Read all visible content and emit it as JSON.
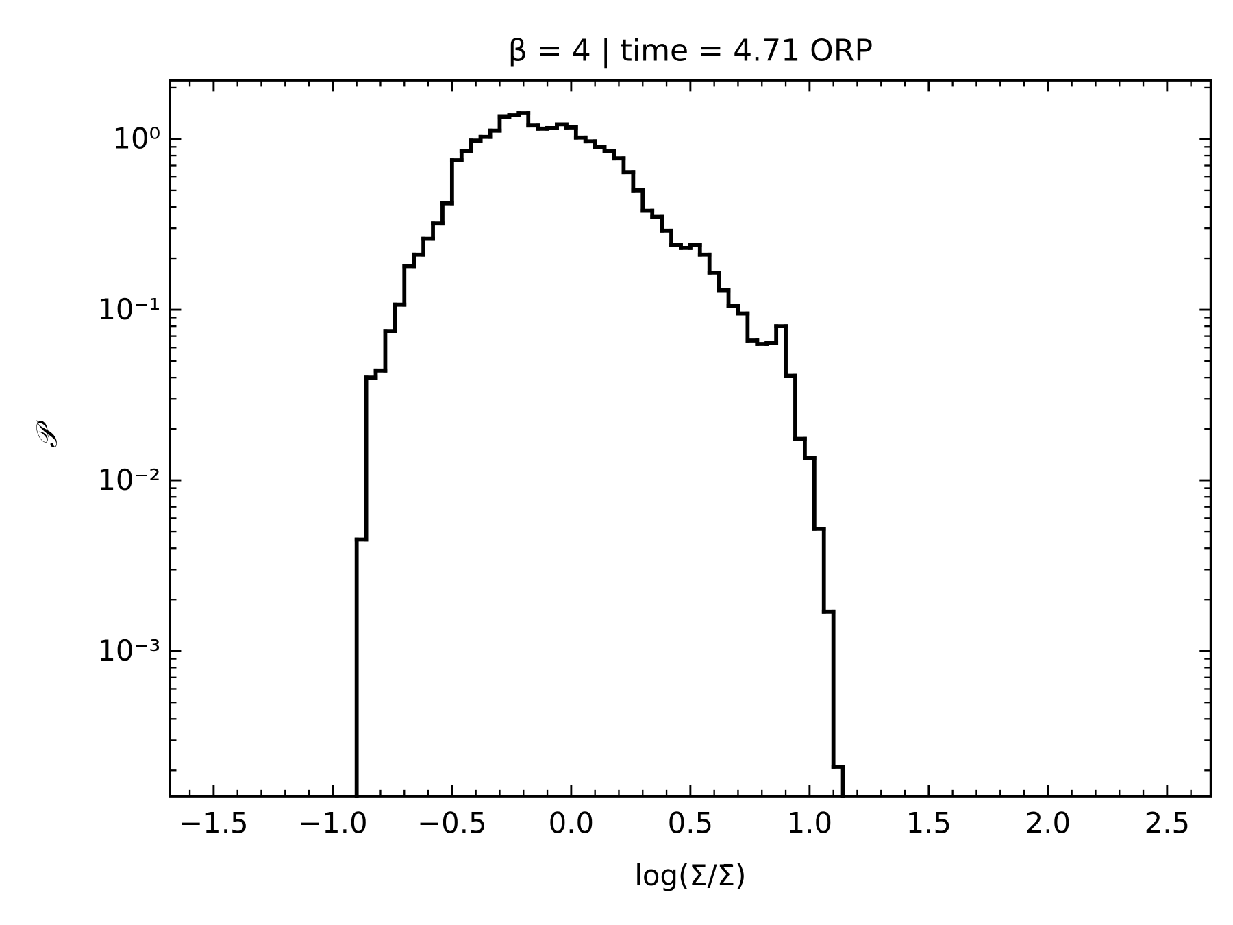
{
  "chart_data": {
    "type": "histogram-step",
    "title": "β = 4 | time = 4.71 ORP",
    "xlabel": "log(Σ/Σ̄)",
    "ylabel": "𝒫",
    "color": "#000000",
    "ylog": true,
    "bins": [
      -0.9,
      -0.86,
      -0.82,
      -0.78,
      -0.74,
      -0.7,
      -0.66,
      -0.62,
      -0.58,
      -0.54,
      -0.5,
      -0.46,
      -0.42,
      -0.38,
      -0.34,
      -0.3,
      -0.26,
      -0.22,
      -0.18,
      -0.14,
      -0.1,
      -0.06,
      -0.02,
      0.02,
      0.06,
      0.1,
      0.14,
      0.18,
      0.22,
      0.26,
      0.3,
      0.34,
      0.38,
      0.42,
      0.46,
      0.5,
      0.54,
      0.58,
      0.62,
      0.66,
      0.7,
      0.74,
      0.78,
      0.82,
      0.86,
      0.9,
      0.94,
      0.98,
      1.02,
      1.06,
      1.1,
      1.14
    ],
    "values": [
      0.0045,
      0.04,
      0.044,
      0.075,
      0.107,
      0.18,
      0.21,
      0.26,
      0.32,
      0.42,
      0.75,
      0.85,
      0.98,
      1.03,
      1.12,
      1.35,
      1.38,
      1.42,
      1.2,
      1.15,
      1.16,
      1.22,
      1.17,
      1.02,
      0.97,
      0.9,
      0.85,
      0.77,
      0.64,
      0.5,
      0.38,
      0.35,
      0.29,
      0.24,
      0.23,
      0.24,
      0.21,
      0.165,
      0.13,
      0.105,
      0.095,
      0.066,
      0.063,
      0.064,
      0.08,
      0.041,
      0.0175,
      0.0135,
      0.0052,
      0.0017,
      0.00021
    ],
    "xlim": [
      -1.683,
      2.683
    ],
    "ylim": [
      0.000141,
      2.21
    ],
    "xticks": [
      {
        "value": -1.5,
        "label": "−1.5"
      },
      {
        "value": -1,
        "label": "−1.0"
      },
      {
        "value": -0.5,
        "label": "−0.5"
      },
      {
        "value": 0,
        "label": "0.0"
      },
      0.5,
      {
        "value": 1,
        "label": "1.0"
      },
      1.5,
      {
        "value": 2,
        "label": "2.0"
      },
      2.5
    ],
    "xminorticks": [
      -1.6,
      -1.4,
      -1.3,
      -1.2,
      -1.1,
      -0.9,
      -0.8,
      -0.7,
      -0.6,
      -0.4,
      -0.3,
      -0.2,
      -0.1,
      0.1,
      0.2,
      0.3,
      0.4,
      0.6,
      0.7,
      0.8,
      0.9,
      1.1,
      1.2,
      1.3,
      1.4,
      1.6,
      1.7,
      1.8,
      1.9,
      2.1,
      2.2,
      2.3,
      2.4,
      2.6
    ],
    "yticks": [
      {
        "value": 0.001,
        "label": "10⁻³"
      },
      {
        "value": 0.01,
        "label": "10⁻²"
      },
      {
        "value": 0.1,
        "label": "10⁻¹"
      },
      {
        "value": 1,
        "label": "10⁰"
      }
    ],
    "yminorticks": [
      0.0002,
      0.0003,
      0.0004,
      0.0005,
      0.0006,
      0.0007,
      0.0008,
      0.0009,
      0.002,
      0.003,
      0.004,
      0.005,
      0.006,
      0.007,
      0.008,
      0.009,
      0.02,
      0.03,
      0.04,
      0.05,
      0.06,
      0.07,
      0.08,
      0.09,
      0.2,
      0.3,
      0.4,
      0.5,
      0.6,
      0.7,
      0.8,
      0.9,
      2
    ]
  }
}
